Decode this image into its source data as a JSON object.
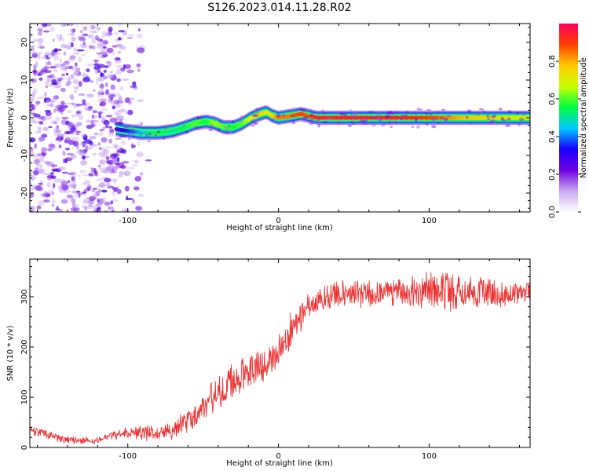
{
  "figure": {
    "title": "S126.2023.014.11.28.R02"
  },
  "chart_data": [
    {
      "type": "heatmap",
      "title": "S126.2023.014.11.28.R02",
      "xlabel": "Height of straight line (km)",
      "ylabel": "Frequency (Hz)",
      "xlim": [
        -165,
        167
      ],
      "ylim": [
        -25,
        25
      ],
      "x_ticks": [
        {
          "value": -100,
          "label": "-100"
        },
        {
          "value": 0,
          "label": "0"
        },
        {
          "value": 100,
          "label": "100"
        }
      ],
      "y_ticks": [
        {
          "value": 20,
          "label": "20"
        },
        {
          "value": 10,
          "label": "10"
        },
        {
          "value": 0,
          "label": "0"
        },
        {
          "value": -10,
          "label": "-10"
        },
        {
          "value": -20,
          "label": "-20"
        }
      ],
      "colorbar": {
        "label": "Normalized spectral amplitude",
        "range": [
          0,
          1
        ],
        "ticks": [
          {
            "value": 0.0,
            "label": "0.0"
          },
          {
            "value": 0.2,
            "label": "0.2"
          },
          {
            "value": 0.4,
            "label": "0.4"
          },
          {
            "value": 0.6,
            "label": "0.6"
          },
          {
            "value": 0.8,
            "label": "0.8"
          }
        ],
        "colormap": [
          "#ffffff",
          "#c8a8f0",
          "#7000e0",
          "#1a00ff",
          "#00c8ff",
          "#00ff40",
          "#c8ff00",
          "#ffc800",
          "#ff4000",
          "#ff005a"
        ]
      },
      "ridge": {
        "x": [
          -108,
          -100,
          -90,
          -80,
          -70,
          -62,
          -55,
          -48,
          -42,
          -36,
          -30,
          -24,
          -18,
          -12,
          -8,
          -4,
          0,
          8,
          15,
          20,
          26,
          40,
          60,
          80,
          100,
          120,
          140,
          167
        ],
        "y": [
          -3,
          -3.5,
          -4,
          -4,
          -3.5,
          -2.5,
          -1.5,
          -1,
          -1.5,
          -2.5,
          -2.5,
          -1.5,
          0,
          1,
          1.5,
          0.5,
          0,
          0.5,
          1,
          0.5,
          0,
          0,
          0,
          0,
          0,
          0,
          0,
          0
        ],
        "amplitude": [
          0.25,
          0.35,
          0.45,
          0.55,
          0.5,
          0.55,
          0.6,
          0.55,
          0.65,
          0.6,
          0.55,
          0.6,
          0.7,
          0.75,
          0.7,
          0.75,
          0.85,
          0.85,
          0.9,
          0.85,
          0.95,
          0.95,
          0.95,
          0.95,
          0.9,
          0.8,
          0.75,
          0.7
        ]
      },
      "noise_region": {
        "x_range": [
          -165,
          -85
        ],
        "y_range": [
          -25,
          25
        ]
      }
    },
    {
      "type": "line",
      "xlabel": "Height of straight line (km)",
      "ylabel": "SNR (10 * v/v)",
      "xlim": [
        -165,
        167
      ],
      "ylim": [
        0,
        375
      ],
      "color": "#ee3333",
      "x_ticks": [
        {
          "value": -100,
          "label": "-100"
        },
        {
          "value": 0,
          "label": "0"
        },
        {
          "value": 100,
          "label": "100"
        }
      ],
      "y_ticks": [
        {
          "value": 0,
          "label": "0"
        },
        {
          "value": 100,
          "label": "100"
        },
        {
          "value": 200,
          "label": "200"
        },
        {
          "value": 300,
          "label": "300"
        }
      ],
      "envelope": {
        "x": [
          -165,
          -150,
          -140,
          -130,
          -120,
          -110,
          -100,
          -90,
          -80,
          -70,
          -60,
          -50,
          -40,
          -30,
          -20,
          -10,
          0,
          10,
          20,
          30,
          40,
          60,
          80,
          90,
          100,
          110,
          120,
          130,
          140,
          150,
          160,
          167
        ],
        "mean": [
          35,
          22,
          15,
          13,
          15,
          22,
          28,
          30,
          28,
          35,
          55,
          80,
          110,
          135,
          150,
          165,
          190,
          240,
          280,
          300,
          305,
          305,
          310,
          310,
          315,
          312,
          315,
          310,
          305,
          305,
          310,
          310
        ],
        "spread": [
          8,
          8,
          6,
          6,
          6,
          8,
          10,
          14,
          12,
          16,
          20,
          25,
          30,
          30,
          30,
          30,
          30,
          30,
          25,
          22,
          22,
          25,
          25,
          30,
          35,
          35,
          35,
          30,
          25,
          20,
          20,
          20
        ]
      }
    }
  ]
}
